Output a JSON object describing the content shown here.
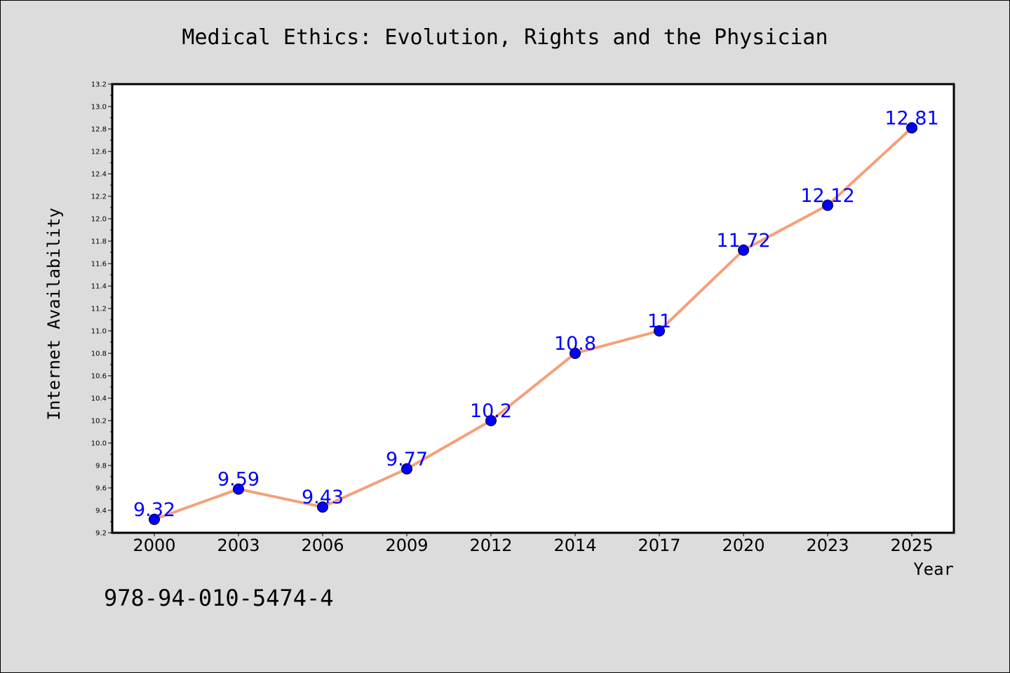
{
  "chart_data": {
    "type": "line",
    "title": "Medical Ethics: Evolution, Rights and the Physician",
    "xlabel": "Year",
    "ylabel": "Internet Availability",
    "categories": [
      "2000",
      "2003",
      "2006",
      "2009",
      "2012",
      "2014",
      "2017",
      "2020",
      "2023",
      "2025"
    ],
    "values": [
      9.32,
      9.59,
      9.43,
      9.77,
      10.2,
      10.8,
      11,
      11.72,
      12.12,
      12.81
    ],
    "data_labels": [
      "9.32",
      "9.59",
      "9.43",
      "9.77",
      "10.2",
      "10.8",
      "11",
      "11.72",
      "12.12",
      "12.81"
    ],
    "ylim": [
      9.2,
      13.2
    ],
    "yticks": [
      "9.2",
      "9.4",
      "9.6",
      "9.8",
      "10.0",
      "10.2",
      "10.4",
      "10.6",
      "10.8",
      "11.0",
      "11.2",
      "11.4",
      "11.6",
      "11.8",
      "12.0",
      "12.2",
      "12.4",
      "12.6",
      "12.8",
      "13.0",
      "13.2"
    ],
    "grid": false,
    "line_color": "#f4a07a",
    "marker_color": "#0000ff",
    "label_color": "#0000ff",
    "background_color": "#dcdcdc",
    "plot_background": "#ffffff"
  },
  "footer": {
    "isbn": "978-94-010-5474-4"
  }
}
